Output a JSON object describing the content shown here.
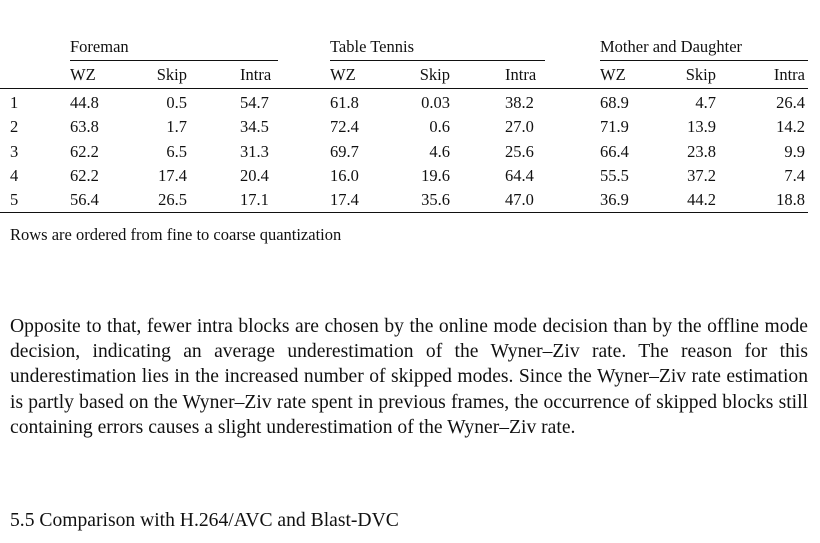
{
  "table": {
    "groups": [
      "Foreman",
      "Table Tennis",
      "Mother and Daughter"
    ],
    "columns": [
      "WZ",
      "Skip",
      "Intra",
      "WZ",
      "Skip",
      "Intra",
      "WZ",
      "Skip",
      "Intra"
    ],
    "rows": [
      [
        "1",
        "44.8",
        "0.5",
        "54.7",
        "61.8",
        "0.03",
        "38.2",
        "68.9",
        "4.7",
        "26.4"
      ],
      [
        "2",
        "63.8",
        "1.7",
        "34.5",
        "72.4",
        "0.6",
        "27.0",
        "71.9",
        "13.9",
        "14.2"
      ],
      [
        "3",
        "62.2",
        "6.5",
        "31.3",
        "69.7",
        "4.6",
        "25.6",
        "66.4",
        "23.8",
        "9.9"
      ],
      [
        "4",
        "62.2",
        "17.4",
        "20.4",
        "16.0",
        "19.6",
        "64.4",
        "55.5",
        "37.2",
        "7.4"
      ],
      [
        "5",
        "56.4",
        "26.5",
        "17.1",
        "17.4",
        "35.6",
        "47.0",
        "36.9",
        "44.2",
        "18.8"
      ]
    ],
    "note": "Rows are ordered from fine to coarse quantization"
  },
  "paragraph": "Opposite to that, fewer intra blocks are chosen by the online mode decision than by the offline mode decision, indicating an average underestimation of the Wyner–Ziv rate. The reason for this underestimation lies in the increased number of skipped modes. Since the Wyner–Ziv rate estimation is partly based on the Wyner–Ziv rate spent in previous frames, the occurrence of skipped blocks still containing errors causes a slight underestimation of the Wyner–Ziv rate.",
  "section_heading": "5.5 Comparison with H.264/AVC and Blast-DVC"
}
